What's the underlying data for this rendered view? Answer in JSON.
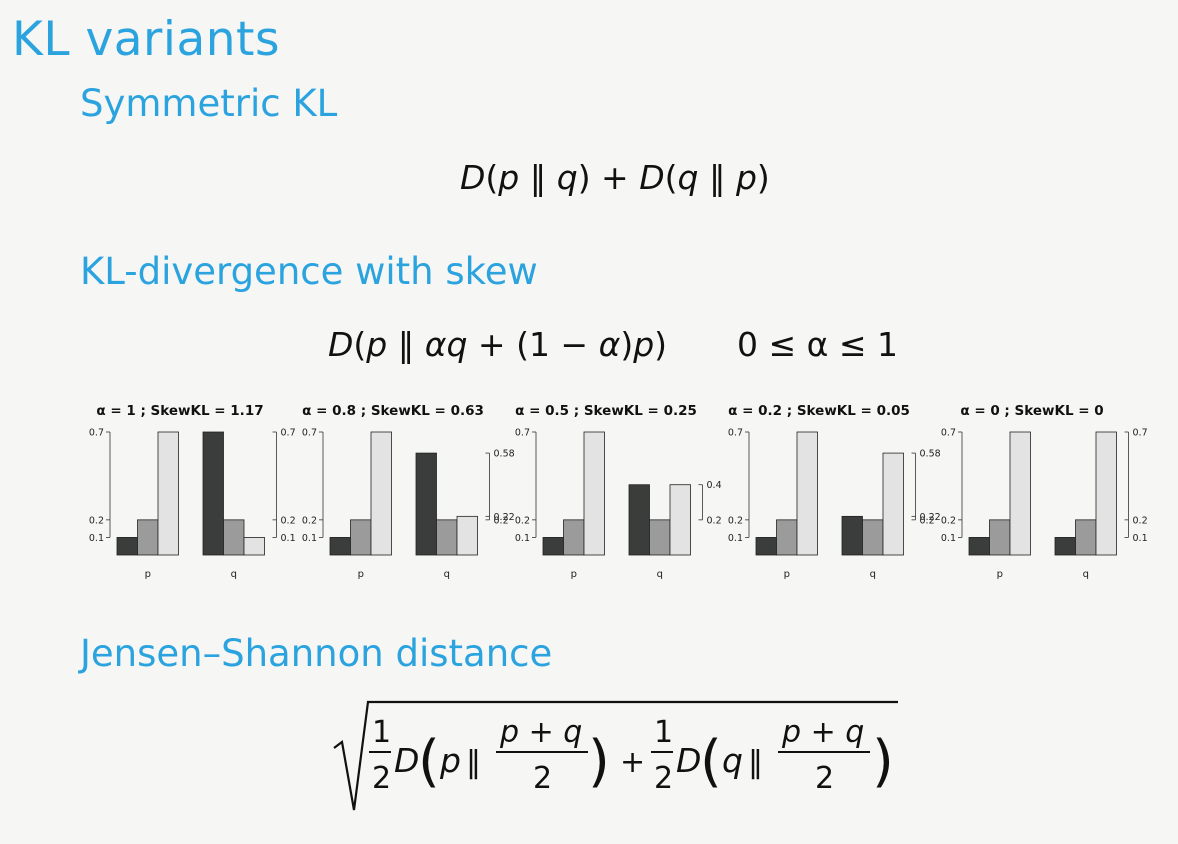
{
  "title": "KL variants",
  "sections": {
    "symmetric": {
      "heading": "Symmetric KL"
    },
    "skew": {
      "heading": "KL-divergence with skew",
      "constraint": "0 ≤ α ≤ 1"
    },
    "jensen": {
      "heading": "Jensen–Shannon distance"
    }
  },
  "chart_data": [
    {
      "type": "bar",
      "title": "α = 1 ; SkewKL =  1.17",
      "groups": [
        "p",
        "q"
      ],
      "series": [
        {
          "values": [
            0.1,
            0.7
          ]
        },
        {
          "values": [
            0.2,
            0.2
          ]
        },
        {
          "values": [
            0.7,
            0.1
          ]
        }
      ],
      "left_ticks": [
        "0.1",
        "0.2",
        "0.7"
      ],
      "right_ticks": [
        "0.1",
        "0.2",
        "0.7"
      ],
      "ylim": [
        0,
        0.7
      ]
    },
    {
      "type": "bar",
      "title": "α = 0.8 ; SkewKL =  0.63",
      "groups": [
        "p",
        "q"
      ],
      "series": [
        {
          "values": [
            0.1,
            0.58
          ]
        },
        {
          "values": [
            0.2,
            0.2
          ]
        },
        {
          "values": [
            0.7,
            0.22
          ]
        }
      ],
      "left_ticks": [
        "0.1",
        "0.2",
        "0.7"
      ],
      "right_ticks": [
        "0.2",
        "0.22",
        "0.58"
      ],
      "ylim": [
        0,
        0.7
      ]
    },
    {
      "type": "bar",
      "title": "α = 0.5 ; SkewKL =  0.25",
      "groups": [
        "p",
        "q"
      ],
      "series": [
        {
          "values": [
            0.1,
            0.4
          ]
        },
        {
          "values": [
            0.2,
            0.2
          ]
        },
        {
          "values": [
            0.7,
            0.4
          ]
        }
      ],
      "left_ticks": [
        "0.1",
        "0.2",
        "0.7"
      ],
      "right_ticks": [
        "0.2",
        "0.4"
      ],
      "ylim": [
        0,
        0.7
      ]
    },
    {
      "type": "bar",
      "title": "α = 0.2 ; SkewKL =  0.05",
      "groups": [
        "p",
        "q"
      ],
      "series": [
        {
          "values": [
            0.1,
            0.22
          ]
        },
        {
          "values": [
            0.2,
            0.2
          ]
        },
        {
          "values": [
            0.7,
            0.58
          ]
        }
      ],
      "left_ticks": [
        "0.1",
        "0.2",
        "0.7"
      ],
      "right_ticks": [
        "0.2",
        "0.22",
        "0.58"
      ],
      "ylim": [
        0,
        0.7
      ]
    },
    {
      "type": "bar",
      "title": "α = 0 ; SkewKL =  0",
      "groups": [
        "p",
        "q"
      ],
      "series": [
        {
          "values": [
            0.1,
            0.1
          ]
        },
        {
          "values": [
            0.2,
            0.2
          ]
        },
        {
          "values": [
            0.7,
            0.7
          ]
        }
      ],
      "left_ticks": [
        "0.1",
        "0.2",
        "0.7"
      ],
      "right_ticks": [
        "0.1",
        "0.2",
        "0.7"
      ],
      "ylim": [
        0,
        0.7
      ]
    }
  ],
  "colors": {
    "accent": "#2aa3df",
    "bar_dark": "#3b3d3c",
    "bar_mid": "#9a9b9a",
    "bar_light": "#e2e3e2"
  }
}
